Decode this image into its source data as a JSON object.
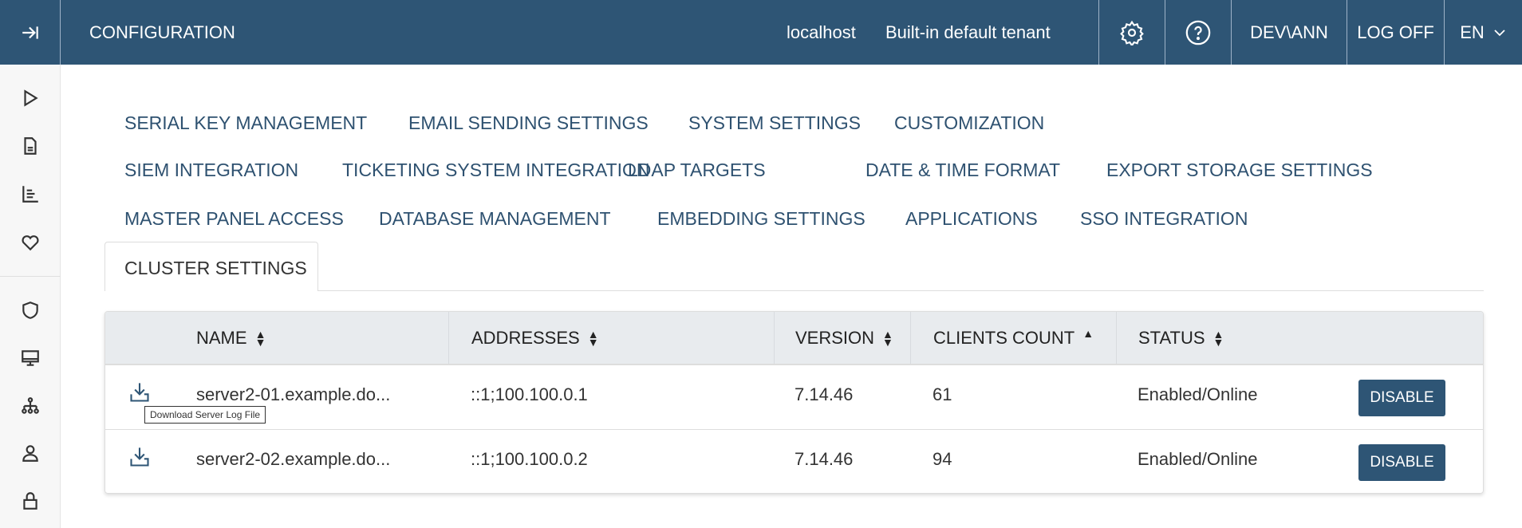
{
  "colors": {
    "brand": "#2e5575",
    "tab_text": "#2e5170"
  },
  "header": {
    "title": "CONFIGURATION",
    "host": "localhost",
    "tenant": "Built-in default tenant",
    "user": "DEV\\ANN",
    "logoff": "LOG OFF",
    "language": "EN"
  },
  "sidebar": {
    "icons": [
      "expand-icon",
      "play-icon",
      "document-icon",
      "reports-icon",
      "heart-icon",
      "shield-icon",
      "monitor-icon",
      "hierarchy-icon",
      "user-icon",
      "lock-icon"
    ]
  },
  "tabs": [
    [
      "SERIAL KEY MANAGEMENT",
      "EMAIL SENDING SETTINGS",
      "SYSTEM SETTINGS",
      "CUSTOMIZATION"
    ],
    [
      "SIEM INTEGRATION",
      "TICKETING SYSTEM INTEGRATION",
      "LDAP TARGETS",
      "DATE & TIME FORMAT",
      "EXPORT STORAGE SETTINGS"
    ],
    [
      "MASTER PANEL ACCESS",
      "DATABASE MANAGEMENT",
      "EMBEDDING SETTINGS",
      "APPLICATIONS",
      "SSO INTEGRATION"
    ]
  ],
  "active_tab": "CLUSTER SETTINGS",
  "table": {
    "columns": [
      {
        "label": "NAME",
        "sort": "both"
      },
      {
        "label": "ADDRESSES",
        "sort": "both"
      },
      {
        "label": "VERSION",
        "sort": "both"
      },
      {
        "label": "CLIENTS COUNT",
        "sort": "asc"
      },
      {
        "label": "STATUS",
        "sort": "both"
      }
    ],
    "rows": [
      {
        "name": "server2-01.example.do...",
        "addresses": "::1;100.100.0.1",
        "version": "7.14.46",
        "clients": "61",
        "status": "Enabled/Online",
        "action": "DISABLE"
      },
      {
        "name": "server2-02.example.do...",
        "addresses": "::1;100.100.0.2",
        "version": "7.14.46",
        "clients": "94",
        "status": "Enabled/Online",
        "action": "DISABLE"
      }
    ]
  },
  "tooltip": "Download Server Log File"
}
